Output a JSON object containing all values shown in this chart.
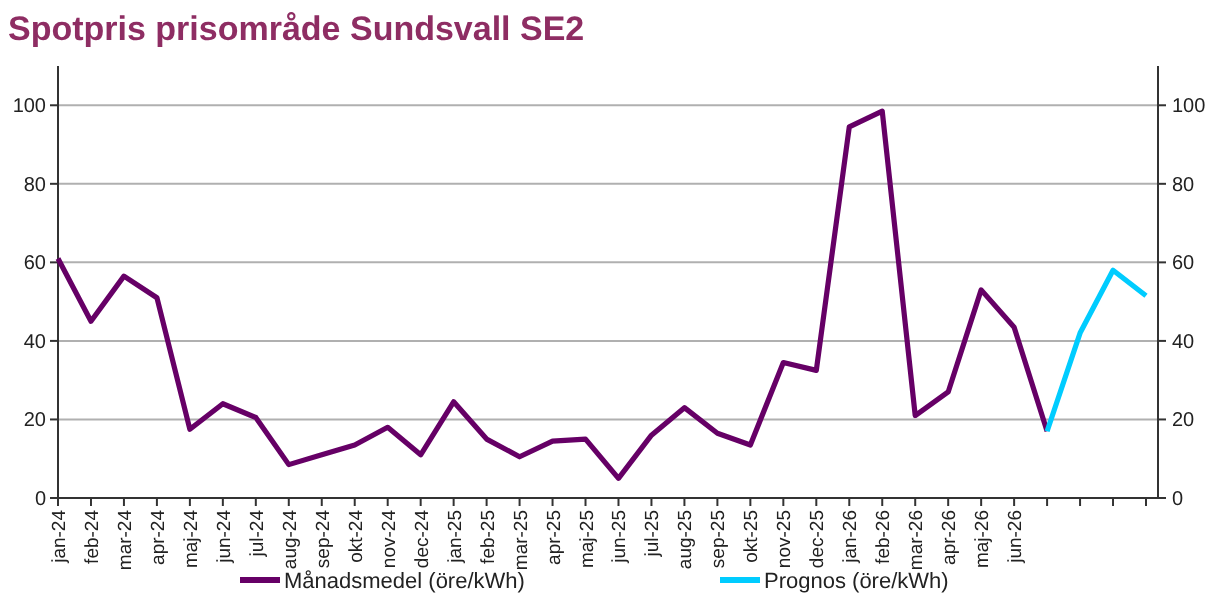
{
  "chart_data": {
    "type": "line",
    "title": "Spotpris prisområde Sundsvall SE2",
    "categories": [
      "jan-24",
      "feb-24",
      "mar-24",
      "apr-24",
      "maj-24",
      "jun-24",
      "jul-24",
      "aug-24",
      "sep-24",
      "okt-24",
      "nov-24",
      "dec-24",
      "jan-25",
      "feb-25",
      "mar-25",
      "apr-25",
      "maj-25",
      "jun-25",
      "jul-25",
      "aug-25",
      "sep-25",
      "okt-25",
      "nov-25",
      "dec-25",
      "jan-26",
      "feb-26",
      "mar-26",
      "apr-26",
      "maj-26",
      "jun-26",
      null,
      null,
      null,
      null
    ],
    "series": [
      {
        "name": "Månadsmedel (öre/kWh)",
        "color": "#660066",
        "values": [
          61,
          45,
          56.5,
          51,
          17.5,
          24,
          20.5,
          8.5,
          11,
          13.5,
          18,
          11,
          24.5,
          15,
          10.5,
          14.5,
          15,
          5,
          16,
          23,
          16.5,
          13.5,
          34.5,
          32.5,
          94.5,
          98.5,
          21,
          27,
          53,
          43.5,
          17,
          null,
          null,
          null
        ]
      },
      {
        "name": "Prognos (öre/kWh)",
        "color": "#00ccff",
        "values": [
          null,
          null,
          null,
          null,
          null,
          null,
          null,
          null,
          null,
          null,
          null,
          null,
          null,
          null,
          null,
          null,
          null,
          null,
          null,
          null,
          null,
          null,
          null,
          null,
          null,
          null,
          null,
          null,
          null,
          null,
          17,
          42,
          58,
          51.5
        ]
      }
    ],
    "ylim": [
      0,
      110
    ],
    "yticks": [
      0,
      20,
      40,
      60,
      80,
      100
    ],
    "y2lim": [
      0,
      110
    ],
    "y2ticks": [
      0,
      20,
      40,
      60,
      80,
      100
    ],
    "grid": "y",
    "legend": "bottom",
    "marker": "none",
    "line_style": "solid"
  }
}
